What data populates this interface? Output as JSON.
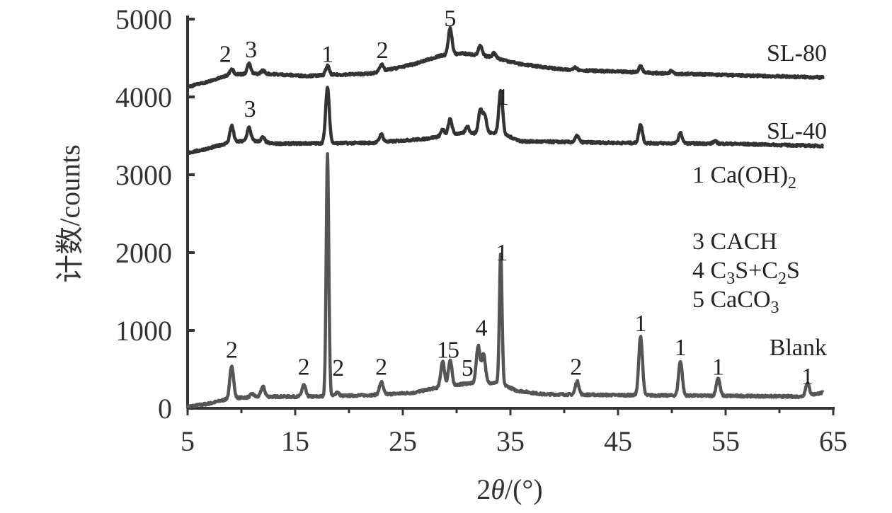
{
  "chart_data": {
    "type": "line",
    "title": "",
    "xlabel": "2θ/(°)",
    "xlabel_parts": {
      "main": "2",
      "italic": "θ",
      "rest": "/(°)"
    },
    "ylabel": "计数/counts",
    "xlim": [
      5,
      65
    ],
    "ylim": [
      0,
      5000
    ],
    "xticks": [
      5,
      15,
      25,
      35,
      45,
      55,
      65
    ],
    "yticks": [
      0,
      1000,
      2000,
      3000,
      4000,
      5000
    ],
    "grid": false,
    "legend_placement": "right",
    "legend": [
      {
        "num": "1",
        "text": "Ca(OH)",
        "sub": "2",
        "tail": ""
      },
      {
        "num": "3",
        "text": "CACH",
        "sub": "",
        "tail": ""
      },
      {
        "num": "4",
        "text": "C",
        "sub": "3",
        "tail": "S+C",
        "sub2": "2",
        "tail2": "S"
      },
      {
        "num": "5",
        "text": "CaCO",
        "sub": "3",
        "tail": ""
      }
    ],
    "series": [
      {
        "name": "Blank",
        "color": "#555555",
        "baseline": [
          [
            5,
            20
          ],
          [
            7,
            60
          ],
          [
            9,
            130
          ],
          [
            12,
            150
          ],
          [
            17,
            150
          ],
          [
            22,
            170
          ],
          [
            26,
            200
          ],
          [
            28,
            260
          ],
          [
            31,
            320
          ],
          [
            34,
            330
          ],
          [
            35.5,
            230
          ],
          [
            38,
            180
          ],
          [
            45,
            170
          ],
          [
            55,
            160
          ],
          [
            62,
            150
          ],
          [
            64,
            200
          ]
        ],
        "peaks": [
          [
            9.1,
            420
          ],
          [
            11,
            40
          ],
          [
            12,
            130
          ],
          [
            15.8,
            150
          ],
          [
            18.0,
            3110
          ],
          [
            18.9,
            50
          ],
          [
            23,
            160
          ],
          [
            28.7,
            330
          ],
          [
            29.4,
            320
          ],
          [
            32.0,
            480
          ],
          [
            32.5,
            380
          ],
          [
            34.1,
            1680
          ],
          [
            41.2,
            170
          ],
          [
            47.1,
            760
          ],
          [
            50.8,
            440
          ],
          [
            54.3,
            230
          ],
          [
            62.6,
            160
          ]
        ],
        "annotations": [
          [
            "2",
            9.1,
            650
          ],
          [
            "2",
            15.8,
            430
          ],
          [
            "2",
            19,
            420
          ],
          [
            "2",
            23,
            430
          ],
          [
            "1",
            28.7,
            650
          ],
          [
            "5",
            29.7,
            650
          ],
          [
            "5",
            31.0,
            420
          ],
          [
            "4",
            32.3,
            930
          ],
          [
            "1",
            34.2,
            1900
          ],
          [
            "2",
            41.1,
            430
          ],
          [
            "1",
            47.1,
            990
          ],
          [
            "1",
            50.8,
            680
          ],
          [
            "1",
            54.3,
            430
          ],
          [
            "1",
            62.6,
            310
          ]
        ]
      },
      {
        "name": "SL-40",
        "color": "#333333",
        "baseline": [
          [
            5,
            3280
          ],
          [
            7,
            3340
          ],
          [
            9,
            3420
          ],
          [
            11,
            3440
          ],
          [
            13,
            3400
          ],
          [
            22,
            3410
          ],
          [
            27,
            3460
          ],
          [
            30,
            3530
          ],
          [
            34,
            3540
          ],
          [
            36,
            3430
          ],
          [
            45,
            3410
          ],
          [
            55,
            3400
          ],
          [
            64,
            3370
          ]
        ],
        "peaks": [
          [
            9.1,
            210
          ],
          [
            10.7,
            170
          ],
          [
            12,
            60
          ],
          [
            18.0,
            720
          ],
          [
            23,
            100
          ],
          [
            28.7,
            80
          ],
          [
            29.4,
            200
          ],
          [
            31,
            90
          ],
          [
            32.2,
            290
          ],
          [
            32.6,
            240
          ],
          [
            34.1,
            560
          ],
          [
            41.2,
            80
          ],
          [
            47.1,
            240
          ],
          [
            50.8,
            130
          ],
          [
            54,
            30
          ]
        ],
        "annotations": [
          [
            "3",
            10.8,
            3745
          ],
          [
            "1",
            34.3,
            3900
          ]
        ]
      },
      {
        "name": "SL-80",
        "color": "#333333",
        "baseline": [
          [
            5,
            4130
          ],
          [
            7,
            4200
          ],
          [
            9,
            4290
          ],
          [
            12,
            4300
          ],
          [
            16,
            4270
          ],
          [
            22,
            4300
          ],
          [
            26,
            4420
          ],
          [
            28.5,
            4530
          ],
          [
            30.5,
            4560
          ],
          [
            33,
            4520
          ],
          [
            36,
            4420
          ],
          [
            40,
            4350
          ],
          [
            50,
            4300
          ],
          [
            64,
            4250
          ]
        ],
        "peaks": [
          [
            9.1,
            70
          ],
          [
            10.7,
            130
          ],
          [
            12,
            40
          ],
          [
            18,
            120
          ],
          [
            23,
            90
          ],
          [
            29.4,
            340
          ],
          [
            32.2,
            120
          ],
          [
            33.5,
            60
          ],
          [
            41,
            40
          ],
          [
            47.1,
            80
          ],
          [
            50,
            40
          ]
        ],
        "annotations": [
          [
            "2",
            8.5,
            4450
          ],
          [
            "3",
            10.9,
            4510
          ],
          [
            "1",
            18,
            4450
          ],
          [
            "2",
            23.1,
            4500
          ],
          [
            "5",
            29.4,
            4910
          ]
        ]
      }
    ],
    "series_labels": {
      "Blank": "Blank",
      "SL-40": "SL-40",
      "SL-80": "SL-80"
    }
  }
}
